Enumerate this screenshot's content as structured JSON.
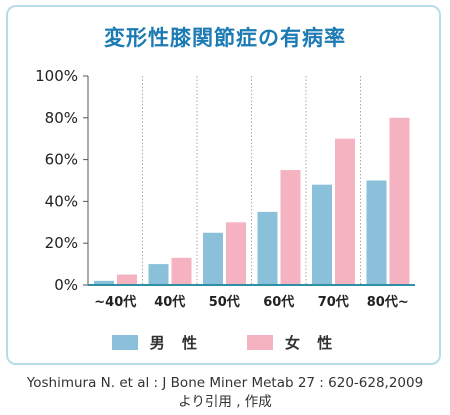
{
  "chart_data": {
    "type": "bar",
    "title": "変形性膝関節症の有病率",
    "categories": [
      "~40代",
      "40代",
      "50代",
      "60代",
      "70代",
      "80代~"
    ],
    "series": [
      {
        "name": "男性",
        "values": [
          2,
          10,
          25,
          35,
          48,
          50
        ],
        "color": "#8ac0da"
      },
      {
        "name": "女性",
        "values": [
          5,
          13,
          30,
          55,
          70,
          80
        ],
        "color": "#f5b2c1"
      }
    ],
    "ylim": [
      0,
      100
    ],
    "yticks": [
      0,
      20,
      40,
      60,
      80,
      100
    ],
    "ytick_labels": [
      "0%",
      "20%",
      "40%",
      "60%",
      "80%",
      "100%"
    ],
    "xlabel": "",
    "ylabel": "",
    "grid": "vertical dotted separators",
    "legend": "bottom-center",
    "legend_labels": [
      "男 性",
      "女 性"
    ]
  },
  "source": {
    "line1": "Yoshimura N. et al : J Bone Miner Metab 27 : 620-628,2009",
    "line2": "より引用 , 作成"
  }
}
